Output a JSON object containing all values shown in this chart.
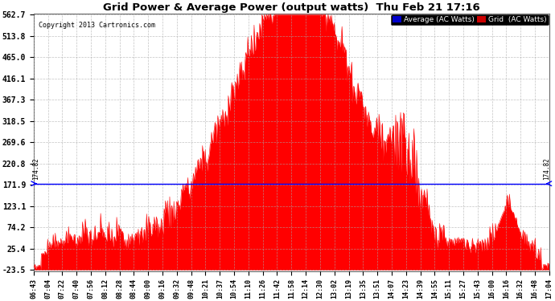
{
  "title": "Grid Power & Average Power (output watts)  Thu Feb 21 17:16",
  "copyright": "Copyright 2013 Cartronics.com",
  "average_value": 174.82,
  "yticks": [
    562.7,
    513.8,
    465.0,
    416.1,
    367.3,
    318.5,
    269.6,
    220.8,
    171.9,
    123.1,
    74.2,
    25.4,
    -23.5
  ],
  "ymin": -23.5,
  "ymax": 562.7,
  "legend_average_label": "Average (AC Watts)",
  "legend_grid_label": "Grid  (AC Watts)",
  "legend_average_bg": "#0000cc",
  "legend_grid_bg": "#cc0000",
  "fill_color": "#ff0000",
  "average_line_color": "#0000ff",
  "background_color": "#ffffff",
  "grid_color": "#aaaaaa",
  "title_color": "#000000",
  "xtick_labels": [
    "06:43",
    "07:04",
    "07:22",
    "07:40",
    "07:56",
    "08:12",
    "08:28",
    "08:44",
    "09:00",
    "09:16",
    "09:32",
    "09:48",
    "10:21",
    "10:37",
    "10:54",
    "11:10",
    "11:26",
    "11:42",
    "11:58",
    "12:14",
    "12:30",
    "13:02",
    "13:19",
    "13:35",
    "13:51",
    "14:07",
    "14:23",
    "14:39",
    "14:55",
    "15:11",
    "15:27",
    "15:43",
    "16:00",
    "16:16",
    "16:32",
    "16:48",
    "17:04"
  ]
}
